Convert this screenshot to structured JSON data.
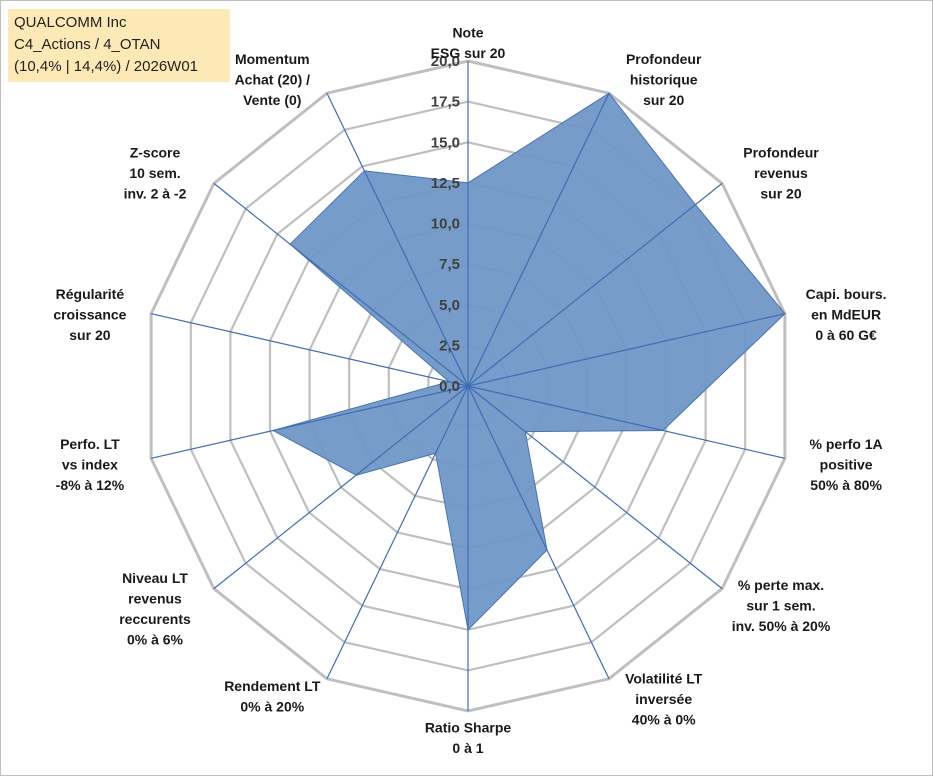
{
  "info": {
    "company": "QUALCOMM Inc",
    "portfolio": "C4_Actions / 4_OTAN",
    "stats": "(10,4% | 14,4%) / 2026W01"
  },
  "colors": {
    "fill": "#7097c7",
    "stroke": "#4a74b0",
    "grid": "#bfbfbf",
    "spoke": "#3e6db5"
  },
  "chart_data": {
    "type": "radar",
    "title": "",
    "rmax": 20,
    "ticks": [
      "0,0",
      "2,5",
      "5,0",
      "7,5",
      "10,0",
      "12,5",
      "15,0",
      "17,5",
      "20,0"
    ],
    "tick_values": [
      0,
      2.5,
      5,
      7.5,
      10,
      12.5,
      15,
      17.5,
      20
    ],
    "axes": [
      {
        "label": [
          "Note",
          "ESG sur 20"
        ],
        "value": 12.5
      },
      {
        "label": [
          "Profondeur",
          "historique",
          "sur 20"
        ],
        "value": 20
      },
      {
        "label": [
          "Profondeur",
          "revenus",
          "sur 20"
        ],
        "value": 17.9
      },
      {
        "label": [
          "Capi. bours.",
          "en MdEUR",
          "0 à 60 G€"
        ],
        "value": 20
      },
      {
        "label": [
          "% perfo 1A",
          "positive",
          "50% à 80%"
        ],
        "value": 12.3
      },
      {
        "label": [
          "% perte max.",
          "sur 1 sem.",
          "inv. 50% à 20%"
        ],
        "value": 4.5
      },
      {
        "label": [
          "Volatilité LT",
          "inversée",
          "40% à 0%"
        ],
        "value": 11.2
      },
      {
        "label": [
          "Ratio Sharpe",
          "0 à 1"
        ],
        "value": 15.0
      },
      {
        "label": [
          "Rendement LT",
          "0% à 20%"
        ],
        "value": 4.6
      },
      {
        "label": [
          "Niveau LT",
          "revenus",
          "reccurents",
          "0% à 6%"
        ],
        "value": 8.8
      },
      {
        "label": [
          "Perfo. LT",
          "vs index",
          "-8% à 12%"
        ],
        "value": 12.3
      },
      {
        "label": [
          "Régularité",
          "croissance",
          "sur 20"
        ],
        "value": 1.2
      },
      {
        "label": [
          "Z-score",
          "10 sem.",
          "inv. 2 à -2"
        ],
        "value": 14.0
      },
      {
        "label": [
          "Momentum",
          "Achat (20) /",
          "Vente (0)"
        ],
        "value": 14.7
      }
    ]
  }
}
